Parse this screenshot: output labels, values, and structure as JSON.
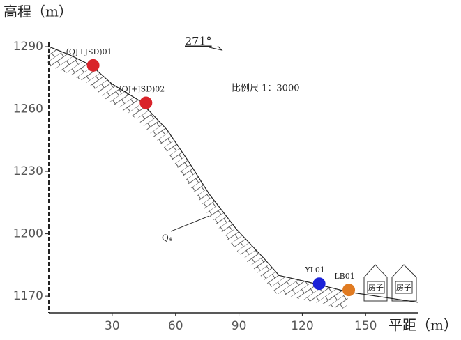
{
  "chart_data": {
    "type": "profile",
    "x_label": "平距（m）",
    "y_label": "高程（m）",
    "direction": "271°",
    "scale": "比例尺 1：3000",
    "stratum": "Q₄",
    "houses": [
      "房子",
      "房子"
    ],
    "xlim": [
      0,
      175
    ],
    "ylim": [
      1162,
      1292
    ],
    "xticks": [
      30,
      60,
      90,
      120,
      150
    ],
    "yticks": [
      1170,
      1200,
      1230,
      1260,
      1290
    ],
    "surface": {
      "x": [
        0,
        10,
        20,
        30,
        43,
        56,
        66,
        76,
        89,
        102,
        109,
        122,
        142,
        175
      ],
      "y": [
        1290,
        1286,
        1281,
        1272,
        1264,
        1250,
        1235,
        1219,
        1202,
        1188,
        1180,
        1177,
        1172,
        1167
      ]
    },
    "series": [
      {
        "name": "(QJ+JSD)01",
        "color": "#d9232a",
        "x": [
          21
        ],
        "values": [
          1281
        ]
      },
      {
        "name": "(QJ+JSD)02",
        "color": "#d9232a",
        "x": [
          46
        ],
        "values": [
          1263
        ]
      },
      {
        "name": "YL01",
        "color": "#1b22d8",
        "x": [
          128
        ],
        "values": [
          1176
        ]
      },
      {
        "name": "LB01",
        "color": "#e07b22",
        "x": [
          142
        ],
        "values": [
          1173
        ]
      }
    ]
  }
}
